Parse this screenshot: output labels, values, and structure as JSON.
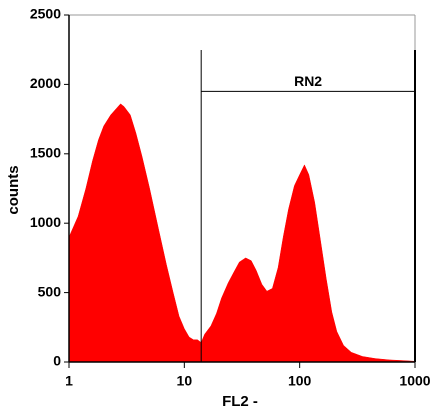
{
  "chart_data": {
    "type": "area",
    "xlabel": "FL2 -",
    "ylabel": "counts",
    "xscale": "log",
    "xlim": [
      1,
      1000
    ],
    "xticks": [
      1,
      10,
      100,
      1000
    ],
    "ylim": [
      0,
      2500
    ],
    "yticks": [
      0,
      500,
      1000,
      1500,
      2000,
      2500
    ],
    "color": "#ff0000",
    "x": [
      1,
      1.2,
      1.4,
      1.6,
      1.8,
      2,
      2.3,
      2.6,
      2.8,
      3,
      3.4,
      3.8,
      4.3,
      5,
      6,
      7,
      8,
      9,
      10,
      11,
      12,
      13,
      14,
      15,
      17,
      19,
      21,
      24,
      27,
      30,
      34,
      38,
      42,
      47,
      52,
      58,
      65,
      72,
      80,
      90,
      100,
      110,
      120,
      135,
      150,
      170,
      190,
      210,
      240,
      280,
      350,
      450,
      600,
      800,
      1000
    ],
    "values": [
      900,
      1050,
      1250,
      1450,
      1600,
      1700,
      1780,
      1830,
      1860,
      1840,
      1780,
      1650,
      1480,
      1250,
      950,
      700,
      500,
      330,
      240,
      180,
      160,
      160,
      140,
      200,
      260,
      350,
      460,
      570,
      650,
      720,
      750,
      730,
      660,
      560,
      510,
      530,
      680,
      900,
      1100,
      1270,
      1350,
      1420,
      1350,
      1150,
      900,
      600,
      360,
      220,
      120,
      70,
      40,
      25,
      15,
      10,
      5
    ],
    "gate": {
      "label": "RN2",
      "x": [
        14,
        1000
      ],
      "y": 1950
    }
  }
}
